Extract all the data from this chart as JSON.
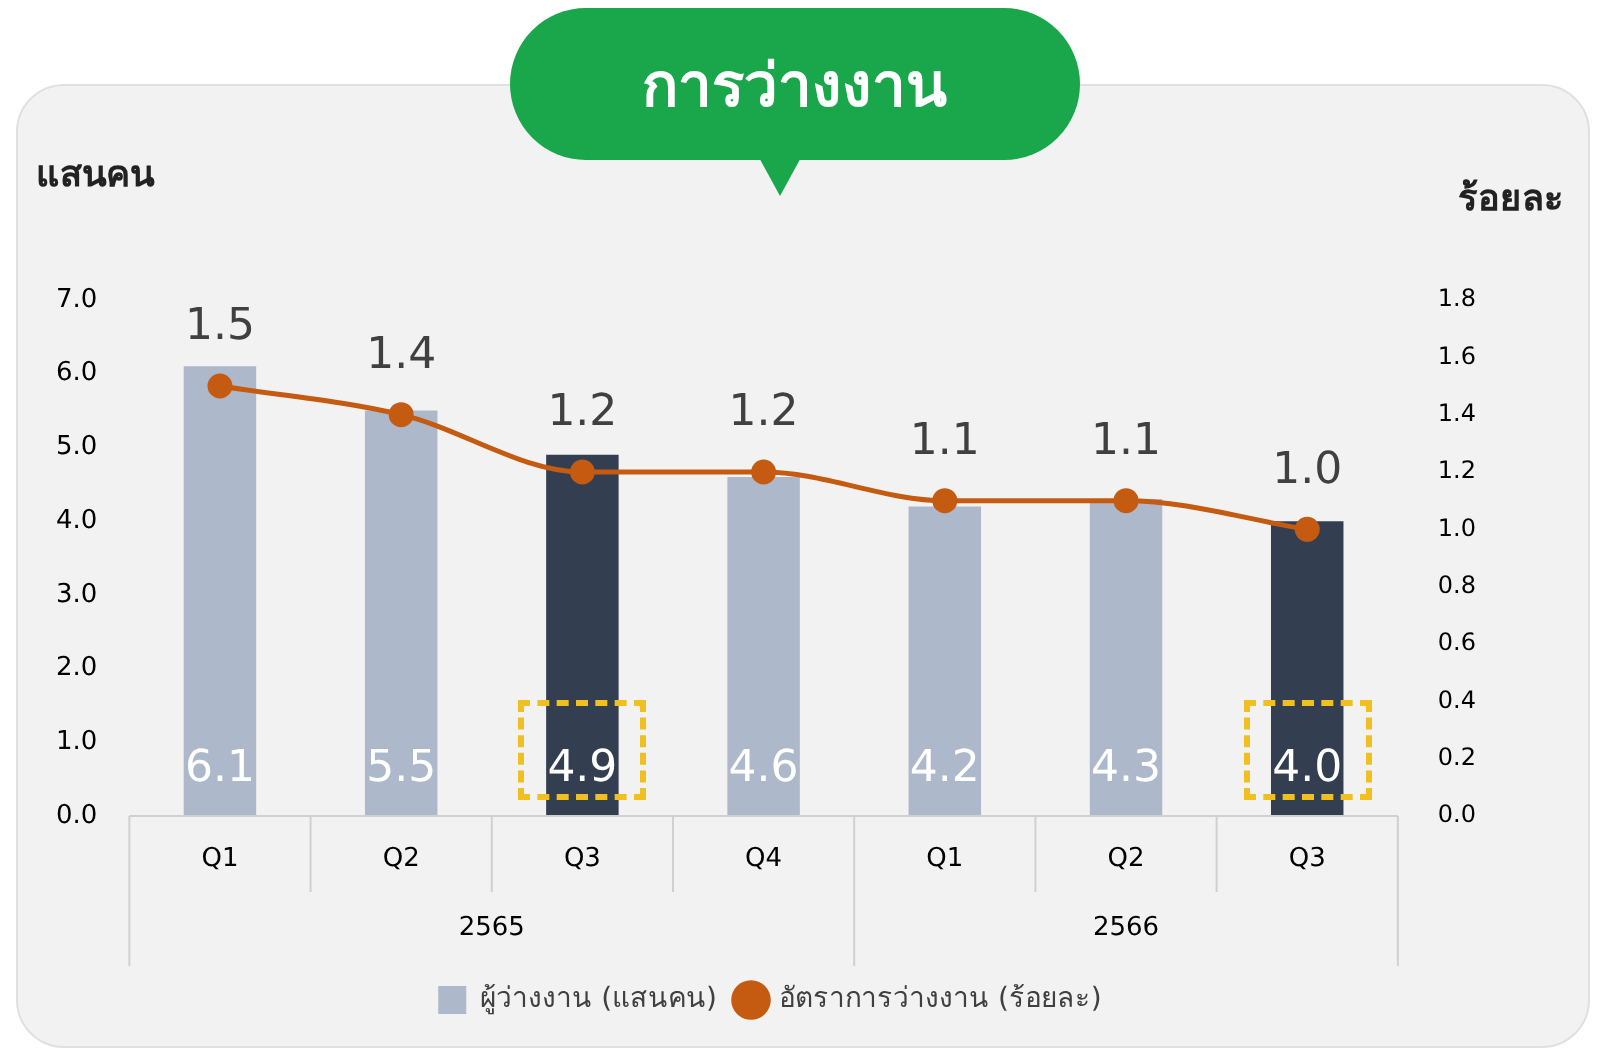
{
  "chart_data": {
    "type": "bar",
    "title": "การว่างงาน",
    "ylabel": "แสนคน",
    "y2label": "ร้อยละ",
    "categories": [
      "Q1",
      "Q2",
      "Q3",
      "Q4",
      "Q1",
      "Q2",
      "Q3"
    ],
    "annotations": [
      "2565",
      "2566"
    ],
    "series": [
      {
        "name": "ผู้ว่างงาน (แสนคน)",
        "color": "#adb9ca",
        "colors": [
          "#adb9ca",
          "#adb9ca",
          "#333f50",
          "#adb9ca",
          "#adb9ca",
          "#adb9ca",
          "#333f50"
        ],
        "values": [
          6.1,
          5.5,
          4.9,
          4.6,
          4.2,
          4.3,
          4.0
        ],
        "value_labels": [
          "6.1",
          "5.5",
          "4.9",
          "4.6",
          "4.2",
          "4.3",
          "4.0"
        ]
      },
      {
        "name": "อัตราการว่างงาน (ร้อยละ)",
        "type": "line",
        "axis": "y2",
        "color": "#c55a11",
        "values": [
          1.5,
          1.4,
          1.2,
          1.2,
          1.1,
          1.1,
          1.0
        ],
        "value_labels": [
          "1.5",
          "1.4",
          "1.2",
          "1.2",
          "1.1",
          "1.1",
          "1.0"
        ]
      }
    ],
    "ylim": [
      0,
      7
    ],
    "yticks": [
      {
        "value": 0,
        "label": "0.0"
      },
      {
        "value": 1,
        "label": "1.0"
      },
      {
        "value": 2,
        "label": "2.0"
      },
      {
        "value": 3,
        "label": "3.0"
      },
      {
        "value": 4,
        "label": "4.0"
      },
      {
        "value": 5,
        "label": "5.0"
      },
      {
        "value": 6,
        "label": "6.0"
      },
      {
        "value": 7,
        "label": "7.0"
      }
    ],
    "y2lim": [
      0,
      1.8
    ],
    "y2ticks": [
      {
        "value": 0,
        "label": "0.0"
      },
      0.2,
      0.4,
      0.6,
      0.8,
      {
        "value": 1,
        "label": "1.0"
      },
      1.2,
      1.4,
      1.6,
      1.8
    ],
    "grid": false,
    "legend": "bottom",
    "marker": "circle",
    "line_style": "solid"
  }
}
